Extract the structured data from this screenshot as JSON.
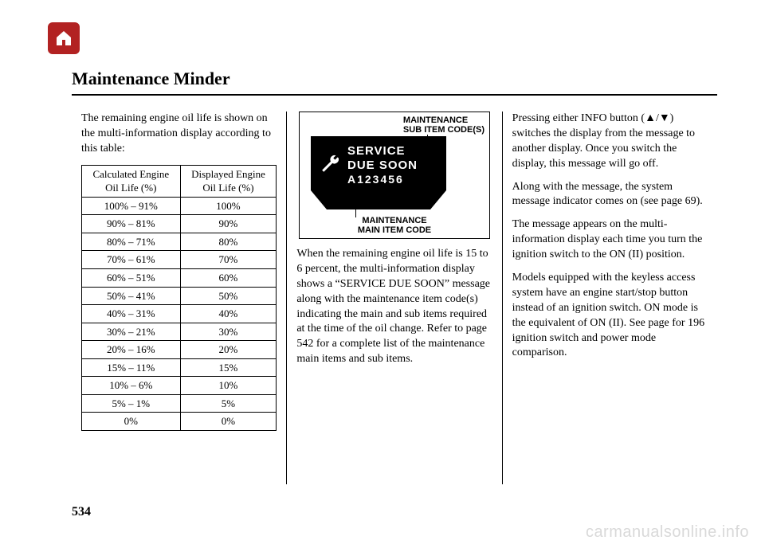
{
  "page_number": "534",
  "watermark": "carmanualsonline.info",
  "title": "Maintenance Minder",
  "home_icon_bg": "#b22222",
  "col1": {
    "intro": "The remaining engine oil life is shown on the multi-information display according to this table:",
    "table": {
      "columns": [
        "Calculated Engine Oil Life (%)",
        "Displayed Engine Oil Life (%)"
      ],
      "rows": [
        [
          "100%  –  91%",
          "100%"
        ],
        [
          "90%  –  81%",
          "90%"
        ],
        [
          "80%  –  71%",
          "80%"
        ],
        [
          "70%  –  61%",
          "70%"
        ],
        [
          "60%  –  51%",
          "60%"
        ],
        [
          "50%  –  41%",
          "50%"
        ],
        [
          "40%  –  31%",
          "40%"
        ],
        [
          "30%  –  21%",
          "30%"
        ],
        [
          "20%  –  16%",
          "20%"
        ],
        [
          "15%  –  11%",
          "15%"
        ],
        [
          "10%  –  6%",
          "10%"
        ],
        [
          "5%  –  1%",
          "5%"
        ],
        [
          "0%",
          "0%"
        ]
      ]
    }
  },
  "col2": {
    "diagram": {
      "label_top_line1": "MAINTENANCE",
      "label_top_line2": "SUB ITEM CODE(S)",
      "label_bottom_line1": "MAINTENANCE",
      "label_bottom_line2": "MAIN ITEM CODE",
      "line1": "SERVICE",
      "line2": "DUE SOON",
      "line3": "A123456"
    },
    "para": "When the remaining engine oil life is 15 to 6 percent, the multi-information display shows a “SERVICE DUE SOON” message along with the maintenance item code(s) indicating the main and sub items required at the time of the oil change. Refer to page 542 for a complete list of the maintenance main items and sub items."
  },
  "col3": {
    "p1": "Pressing either INFO button (▲/▼) switches the display from the message to another display. Once you switch the display, this message will go off.",
    "p2": "Along with the message, the system message indicator comes on (see page 69).",
    "p3": "The message appears on the multi-information display each time you turn the ignition switch to the ON (II) position.",
    "p4": "Models equipped with the keyless access system have an engine start/stop button instead of an ignition switch. ON mode is the equivalent of ON (II). See page for 196 ignition switch and power mode comparison."
  }
}
